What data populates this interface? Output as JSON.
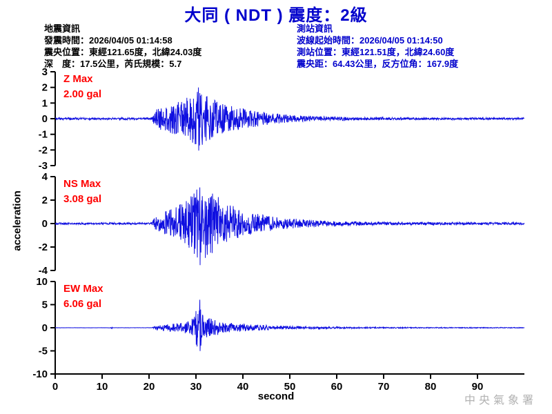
{
  "title": "大同 ( NDT ) 震度：2級",
  "quake_info": {
    "heading": "地震資訊",
    "lines": [
      "發震時間：2026/04/05 01:14:58",
      "震央位置：東經121.65度，北緯24.03度",
      "深　度：17.5公里，芮氏規模：5.7"
    ]
  },
  "station_info": {
    "heading": "測站資訊",
    "lines": [
      "波線起始時間：2026/04/05 01:14:50",
      "測站位置：東經121.51度，北緯24.60度",
      "震央距：64.43公里，反方位角：167.9度"
    ]
  },
  "watermark": "中央氣象署",
  "colors": {
    "title_blue": "#0000cc",
    "station_info_blue": "#0000cc",
    "trace_blue": "#0f0fe0",
    "max_label_red": "#ff0000",
    "watermark_gray": "#b2b2b2",
    "axis_black": "#000000"
  },
  "chart_data": {
    "type": "line",
    "title": "大同 ( NDT ) 震度：2級",
    "xlabel": "second",
    "ylabel": "acceleration",
    "x_range": [
      0,
      100
    ],
    "x_ticks": [
      0,
      10,
      20,
      30,
      40,
      50,
      60,
      70,
      80,
      90
    ],
    "grid": false,
    "channels": [
      {
        "name": "Z",
        "max_label": "Z Max",
        "max_value_label": "2.00 gal",
        "max_gal": 2.0,
        "event_start_s": 21,
        "peak_time_s": 30.5,
        "ylim": [
          -3,
          3
        ],
        "yticks": [
          3,
          2,
          1,
          0,
          -1,
          -2,
          -3
        ],
        "seed": 11,
        "envelope": [
          [
            0,
            0.07
          ],
          [
            20.6,
            0.07
          ],
          [
            21.3,
            0.55
          ],
          [
            23,
            0.8
          ],
          [
            26,
            1.05
          ],
          [
            28.5,
            1.4
          ],
          [
            30.5,
            2.05
          ],
          [
            31.8,
            1.6
          ],
          [
            33.5,
            1.25
          ],
          [
            35.5,
            1.0
          ],
          [
            38,
            0.8
          ],
          [
            41,
            0.6
          ],
          [
            44,
            0.45
          ],
          [
            48,
            0.3
          ],
          [
            52,
            0.2
          ],
          [
            56,
            0.15
          ],
          [
            65,
            0.1
          ],
          [
            80,
            0.07
          ],
          [
            100,
            0.06
          ]
        ]
      },
      {
        "name": "NS",
        "max_label": "NS Max",
        "max_value_label": "3.08 gal",
        "max_gal": 3.08,
        "event_start_s": 21,
        "peak_time_s": 30.8,
        "ylim": [
          -4,
          4
        ],
        "yticks": [
          4,
          2,
          0,
          -2,
          -4
        ],
        "seed": 23,
        "envelope": [
          [
            0,
            0.08
          ],
          [
            20.6,
            0.08
          ],
          [
            21.3,
            0.6
          ],
          [
            23,
            0.95
          ],
          [
            26,
            1.5
          ],
          [
            28.5,
            2.3
          ],
          [
            30.8,
            3.25
          ],
          [
            33,
            2.9
          ],
          [
            35,
            2.2
          ],
          [
            37,
            1.7
          ],
          [
            40,
            1.2
          ],
          [
            43,
            0.85
          ],
          [
            46,
            0.62
          ],
          [
            50,
            0.45
          ],
          [
            55,
            0.3
          ],
          [
            60,
            0.2
          ],
          [
            70,
            0.13
          ],
          [
            100,
            0.1
          ]
        ]
      },
      {
        "name": "EW",
        "max_label": "EW Max",
        "max_value_label": "6.06 gal",
        "max_gal": 6.06,
        "event_start_s": 21,
        "peak_time_s": 30.8,
        "ylim": [
          -10,
          10
        ],
        "yticks": [
          10,
          5,
          0,
          -5,
          -10
        ],
        "seed": 37,
        "envelope": [
          [
            0,
            0.025
          ],
          [
            11.8,
            0.025
          ],
          [
            12,
            0.3
          ],
          [
            12.25,
            0.025
          ],
          [
            20.6,
            0.03
          ],
          [
            21.3,
            0.5
          ],
          [
            24,
            0.75
          ],
          [
            27,
            1.05
          ],
          [
            29,
            1.7
          ],
          [
            30.2,
            4.0
          ],
          [
            30.8,
            6.1
          ],
          [
            31.4,
            3.4
          ],
          [
            32.5,
            2.3
          ],
          [
            34,
            1.7
          ],
          [
            36,
            1.25
          ],
          [
            39,
            0.95
          ],
          [
            43,
            0.65
          ],
          [
            47,
            0.48
          ],
          [
            52,
            0.32
          ],
          [
            58,
            0.22
          ],
          [
            68,
            0.14
          ],
          [
            80,
            0.1
          ],
          [
            100,
            0.08
          ]
        ]
      }
    ]
  }
}
